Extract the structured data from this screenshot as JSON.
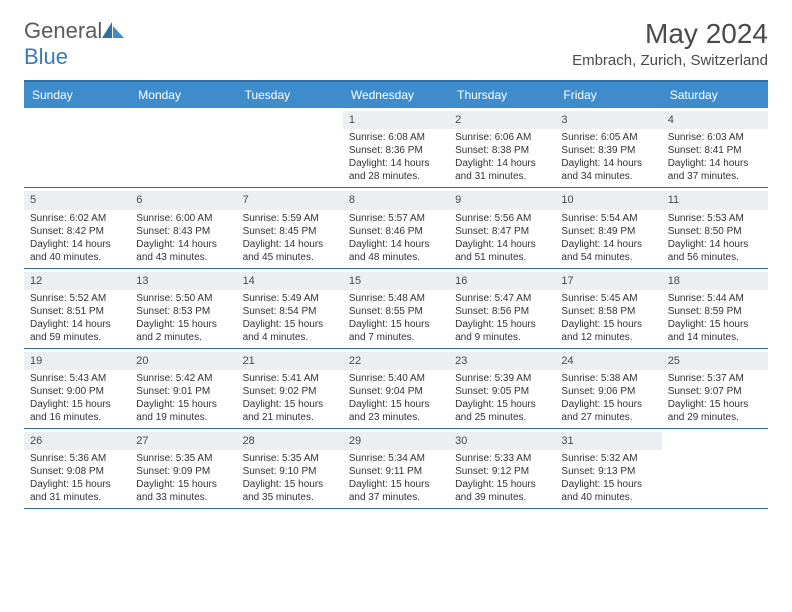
{
  "header": {
    "logo_text_1": "General",
    "logo_text_2": "Blue",
    "title": "May 2024",
    "location": "Embrach, Zurich, Switzerland"
  },
  "colors": {
    "accent": "#3f8ccc",
    "accent_dark": "#2f6fa8",
    "daynum_bg": "#eceff1",
    "text": "#333333",
    "title_text": "#4a4a4a",
    "logo_gray": "#5a5a5a",
    "logo_blue": "#3a7ab8",
    "bg": "#ffffff"
  },
  "day_labels": [
    "Sunday",
    "Monday",
    "Tuesday",
    "Wednesday",
    "Thursday",
    "Friday",
    "Saturday"
  ],
  "weeks": [
    [
      {
        "day": "",
        "sunrise": "",
        "sunset": "",
        "daylight": ""
      },
      {
        "day": "",
        "sunrise": "",
        "sunset": "",
        "daylight": ""
      },
      {
        "day": "",
        "sunrise": "",
        "sunset": "",
        "daylight": ""
      },
      {
        "day": "1",
        "sunrise": "Sunrise: 6:08 AM",
        "sunset": "Sunset: 8:36 PM",
        "daylight": "Daylight: 14 hours and 28 minutes."
      },
      {
        "day": "2",
        "sunrise": "Sunrise: 6:06 AM",
        "sunset": "Sunset: 8:38 PM",
        "daylight": "Daylight: 14 hours and 31 minutes."
      },
      {
        "day": "3",
        "sunrise": "Sunrise: 6:05 AM",
        "sunset": "Sunset: 8:39 PM",
        "daylight": "Daylight: 14 hours and 34 minutes."
      },
      {
        "day": "4",
        "sunrise": "Sunrise: 6:03 AM",
        "sunset": "Sunset: 8:41 PM",
        "daylight": "Daylight: 14 hours and 37 minutes."
      }
    ],
    [
      {
        "day": "5",
        "sunrise": "Sunrise: 6:02 AM",
        "sunset": "Sunset: 8:42 PM",
        "daylight": "Daylight: 14 hours and 40 minutes."
      },
      {
        "day": "6",
        "sunrise": "Sunrise: 6:00 AM",
        "sunset": "Sunset: 8:43 PM",
        "daylight": "Daylight: 14 hours and 43 minutes."
      },
      {
        "day": "7",
        "sunrise": "Sunrise: 5:59 AM",
        "sunset": "Sunset: 8:45 PM",
        "daylight": "Daylight: 14 hours and 45 minutes."
      },
      {
        "day": "8",
        "sunrise": "Sunrise: 5:57 AM",
        "sunset": "Sunset: 8:46 PM",
        "daylight": "Daylight: 14 hours and 48 minutes."
      },
      {
        "day": "9",
        "sunrise": "Sunrise: 5:56 AM",
        "sunset": "Sunset: 8:47 PM",
        "daylight": "Daylight: 14 hours and 51 minutes."
      },
      {
        "day": "10",
        "sunrise": "Sunrise: 5:54 AM",
        "sunset": "Sunset: 8:49 PM",
        "daylight": "Daylight: 14 hours and 54 minutes."
      },
      {
        "day": "11",
        "sunrise": "Sunrise: 5:53 AM",
        "sunset": "Sunset: 8:50 PM",
        "daylight": "Daylight: 14 hours and 56 minutes."
      }
    ],
    [
      {
        "day": "12",
        "sunrise": "Sunrise: 5:52 AM",
        "sunset": "Sunset: 8:51 PM",
        "daylight": "Daylight: 14 hours and 59 minutes."
      },
      {
        "day": "13",
        "sunrise": "Sunrise: 5:50 AM",
        "sunset": "Sunset: 8:53 PM",
        "daylight": "Daylight: 15 hours and 2 minutes."
      },
      {
        "day": "14",
        "sunrise": "Sunrise: 5:49 AM",
        "sunset": "Sunset: 8:54 PM",
        "daylight": "Daylight: 15 hours and 4 minutes."
      },
      {
        "day": "15",
        "sunrise": "Sunrise: 5:48 AM",
        "sunset": "Sunset: 8:55 PM",
        "daylight": "Daylight: 15 hours and 7 minutes."
      },
      {
        "day": "16",
        "sunrise": "Sunrise: 5:47 AM",
        "sunset": "Sunset: 8:56 PM",
        "daylight": "Daylight: 15 hours and 9 minutes."
      },
      {
        "day": "17",
        "sunrise": "Sunrise: 5:45 AM",
        "sunset": "Sunset: 8:58 PM",
        "daylight": "Daylight: 15 hours and 12 minutes."
      },
      {
        "day": "18",
        "sunrise": "Sunrise: 5:44 AM",
        "sunset": "Sunset: 8:59 PM",
        "daylight": "Daylight: 15 hours and 14 minutes."
      }
    ],
    [
      {
        "day": "19",
        "sunrise": "Sunrise: 5:43 AM",
        "sunset": "Sunset: 9:00 PM",
        "daylight": "Daylight: 15 hours and 16 minutes."
      },
      {
        "day": "20",
        "sunrise": "Sunrise: 5:42 AM",
        "sunset": "Sunset: 9:01 PM",
        "daylight": "Daylight: 15 hours and 19 minutes."
      },
      {
        "day": "21",
        "sunrise": "Sunrise: 5:41 AM",
        "sunset": "Sunset: 9:02 PM",
        "daylight": "Daylight: 15 hours and 21 minutes."
      },
      {
        "day": "22",
        "sunrise": "Sunrise: 5:40 AM",
        "sunset": "Sunset: 9:04 PM",
        "daylight": "Daylight: 15 hours and 23 minutes."
      },
      {
        "day": "23",
        "sunrise": "Sunrise: 5:39 AM",
        "sunset": "Sunset: 9:05 PM",
        "daylight": "Daylight: 15 hours and 25 minutes."
      },
      {
        "day": "24",
        "sunrise": "Sunrise: 5:38 AM",
        "sunset": "Sunset: 9:06 PM",
        "daylight": "Daylight: 15 hours and 27 minutes."
      },
      {
        "day": "25",
        "sunrise": "Sunrise: 5:37 AM",
        "sunset": "Sunset: 9:07 PM",
        "daylight": "Daylight: 15 hours and 29 minutes."
      }
    ],
    [
      {
        "day": "26",
        "sunrise": "Sunrise: 5:36 AM",
        "sunset": "Sunset: 9:08 PM",
        "daylight": "Daylight: 15 hours and 31 minutes."
      },
      {
        "day": "27",
        "sunrise": "Sunrise: 5:35 AM",
        "sunset": "Sunset: 9:09 PM",
        "daylight": "Daylight: 15 hours and 33 minutes."
      },
      {
        "day": "28",
        "sunrise": "Sunrise: 5:35 AM",
        "sunset": "Sunset: 9:10 PM",
        "daylight": "Daylight: 15 hours and 35 minutes."
      },
      {
        "day": "29",
        "sunrise": "Sunrise: 5:34 AM",
        "sunset": "Sunset: 9:11 PM",
        "daylight": "Daylight: 15 hours and 37 minutes."
      },
      {
        "day": "30",
        "sunrise": "Sunrise: 5:33 AM",
        "sunset": "Sunset: 9:12 PM",
        "daylight": "Daylight: 15 hours and 39 minutes."
      },
      {
        "day": "31",
        "sunrise": "Sunrise: 5:32 AM",
        "sunset": "Sunset: 9:13 PM",
        "daylight": "Daylight: 15 hours and 40 minutes."
      },
      {
        "day": "",
        "sunrise": "",
        "sunset": "",
        "daylight": ""
      }
    ]
  ]
}
